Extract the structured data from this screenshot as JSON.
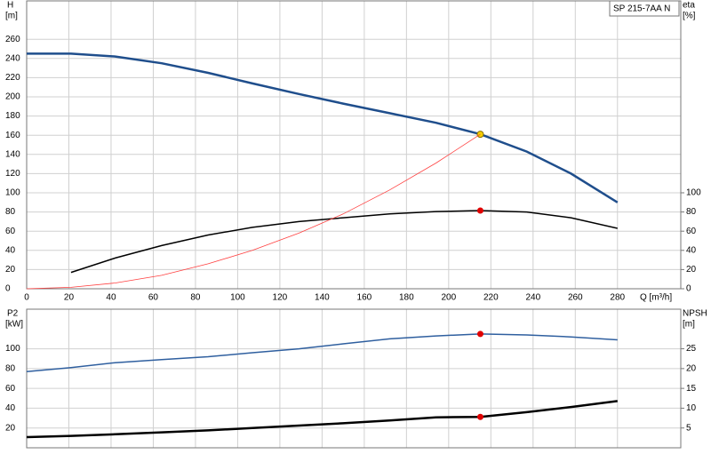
{
  "chart_data": [
    {
      "type": "line",
      "title": "SP 215-7AA N",
      "ylabel": "H",
      "yunit": "[m]",
      "y2label": "eta",
      "y2unit": "[%]",
      "xlabel": "Q [m³/h]",
      "x": [
        0,
        21,
        42,
        64,
        86,
        107,
        129,
        150,
        172,
        194,
        215,
        237,
        258,
        280
      ],
      "xlim": [
        0,
        310
      ],
      "xticks": [
        0,
        20,
        40,
        60,
        80,
        100,
        120,
        140,
        160,
        180,
        200,
        220,
        240,
        260,
        280
      ],
      "show_xtick_labels": true,
      "ylim": [
        0,
        300
      ],
      "yticks": [
        0,
        20,
        40,
        60,
        80,
        100,
        120,
        140,
        160,
        180,
        200,
        220,
        240,
        260
      ],
      "y2lim": [
        0,
        300
      ],
      "y2ticks": [
        0,
        20,
        40,
        60,
        80,
        100
      ],
      "grid": true,
      "series": [
        {
          "color": "#1f4e8c",
          "width": 2.5,
          "axis": "y",
          "values": [
            245,
            245,
            242,
            235,
            225,
            214,
            203,
            193,
            183,
            173,
            161,
            143,
            120,
            90
          ],
          "marker": {
            "x": 215,
            "y": 161,
            "color": "#f5d000"
          }
        },
        {
          "color": "#000000",
          "width": 1.5,
          "axis": "y2",
          "values": [
            null,
            17,
            32,
            45,
            56,
            64,
            70,
            74,
            78,
            80.5,
            81.5,
            80,
            74,
            63
          ],
          "marker": {
            "x": 215,
            "y": 81.5,
            "color": "#e00000"
          }
        },
        {
          "color": "#ff4040",
          "width": 0.8,
          "axis": "y",
          "values": [
            0,
            1.5,
            6,
            14,
            26,
            40,
            58,
            78,
            103,
            131,
            161,
            null,
            null,
            null
          ]
        }
      ]
    },
    {
      "type": "line",
      "ylabel": "P2",
      "yunit": "[kW]",
      "y2label": "NPSH",
      "y2unit": "[m]",
      "x": [
        0,
        21,
        42,
        64,
        86,
        107,
        129,
        150,
        172,
        194,
        215,
        237,
        258,
        280
      ],
      "xlim": [
        0,
        310
      ],
      "xticks": [
        0,
        20,
        40,
        60,
        80,
        100,
        120,
        140,
        160,
        180,
        200,
        220,
        240,
        260,
        280
      ],
      "show_xtick_labels": false,
      "ylim": [
        0,
        140
      ],
      "yticks": [
        20,
        40,
        60,
        80,
        100
      ],
      "y2lim": [
        0,
        35
      ],
      "y2ticks": [
        5,
        10,
        15,
        20,
        25
      ],
      "grid": true,
      "series": [
        {
          "color": "#2f5f9f",
          "width": 1.5,
          "axis": "y",
          "values": [
            77,
            81,
            86,
            89,
            92,
            96,
            100,
            105,
            110,
            113,
            115,
            114,
            112,
            109
          ],
          "marker": {
            "x": 215,
            "y": 115,
            "color": "#e00000"
          }
        },
        {
          "color": "#000000",
          "width": 2.5,
          "axis": "y2",
          "values": [
            2.7,
            3,
            3.4,
            3.9,
            4.4,
            5,
            5.6,
            6.2,
            6.9,
            7.7,
            7.8,
            9,
            10.3,
            11.8
          ],
          "marker": {
            "x": 215,
            "y": 7.8,
            "color": "#e00000"
          }
        }
      ]
    }
  ]
}
